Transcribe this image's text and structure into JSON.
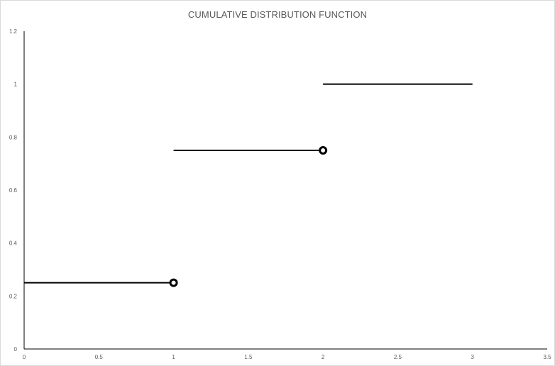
{
  "chart_data": {
    "type": "line",
    "title": "CUMULATIVE DISTRIBUTION FUNCTION",
    "xlabel": "",
    "ylabel": "",
    "xlim": [
      0,
      3.5
    ],
    "ylim": [
      0,
      1.2
    ],
    "x_ticks": [
      "0",
      "0.5",
      "1",
      "1.5",
      "2",
      "2.5",
      "3",
      "3.5"
    ],
    "y_ticks": [
      "0",
      "0.2",
      "0.4",
      "0.6",
      "0.8",
      "1",
      "1.2"
    ],
    "grid": false,
    "legend": "none",
    "line_color": "#000000",
    "segments": [
      {
        "x": [
          0,
          1
        ],
        "y": [
          0.25,
          0.25
        ]
      },
      {
        "x": [
          1,
          2
        ],
        "y": [
          0.75,
          0.75
        ]
      },
      {
        "x": [
          2,
          3
        ],
        "y": [
          1,
          1
        ]
      }
    ],
    "open_points": [
      {
        "x": 1,
        "y": 0.25
      },
      {
        "x": 2,
        "y": 0.75
      }
    ]
  }
}
